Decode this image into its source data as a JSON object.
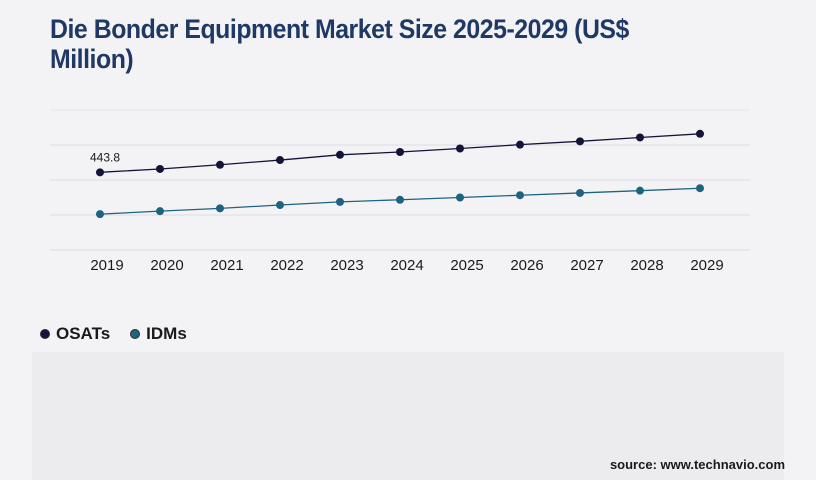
{
  "title": "Die Bonder Equipment Market Size 2025-2029 (US$ Million)",
  "source": "source: www.technavio.com",
  "chart_data": {
    "type": "line",
    "title": "Die Bonder Equipment Market Size 2025-2029 (US$ Million)",
    "xlabel": "",
    "ylabel": "",
    "grid": true,
    "legend": "bottom-left",
    "ylim": [
      0,
      1000
    ],
    "categories": [
      "2019",
      "2020",
      "2021",
      "2022",
      "2023",
      "2024",
      "2025",
      "2026",
      "2027",
      "2028",
      "2029"
    ],
    "series": [
      {
        "name": "OSATs",
        "color": "#14143a",
        "values": [
          443.8,
          463,
          487,
          514,
          544,
          560,
          580,
          602,
          621,
          643,
          664
        ]
      },
      {
        "name": "IDMs",
        "color": "#1e6380",
        "values": [
          205,
          222,
          238,
          257,
          275,
          287,
          300,
          313,
          326,
          339,
          353
        ]
      }
    ],
    "annotations": [
      {
        "series": "OSATs",
        "category": "2019",
        "text": "443.8"
      }
    ]
  }
}
